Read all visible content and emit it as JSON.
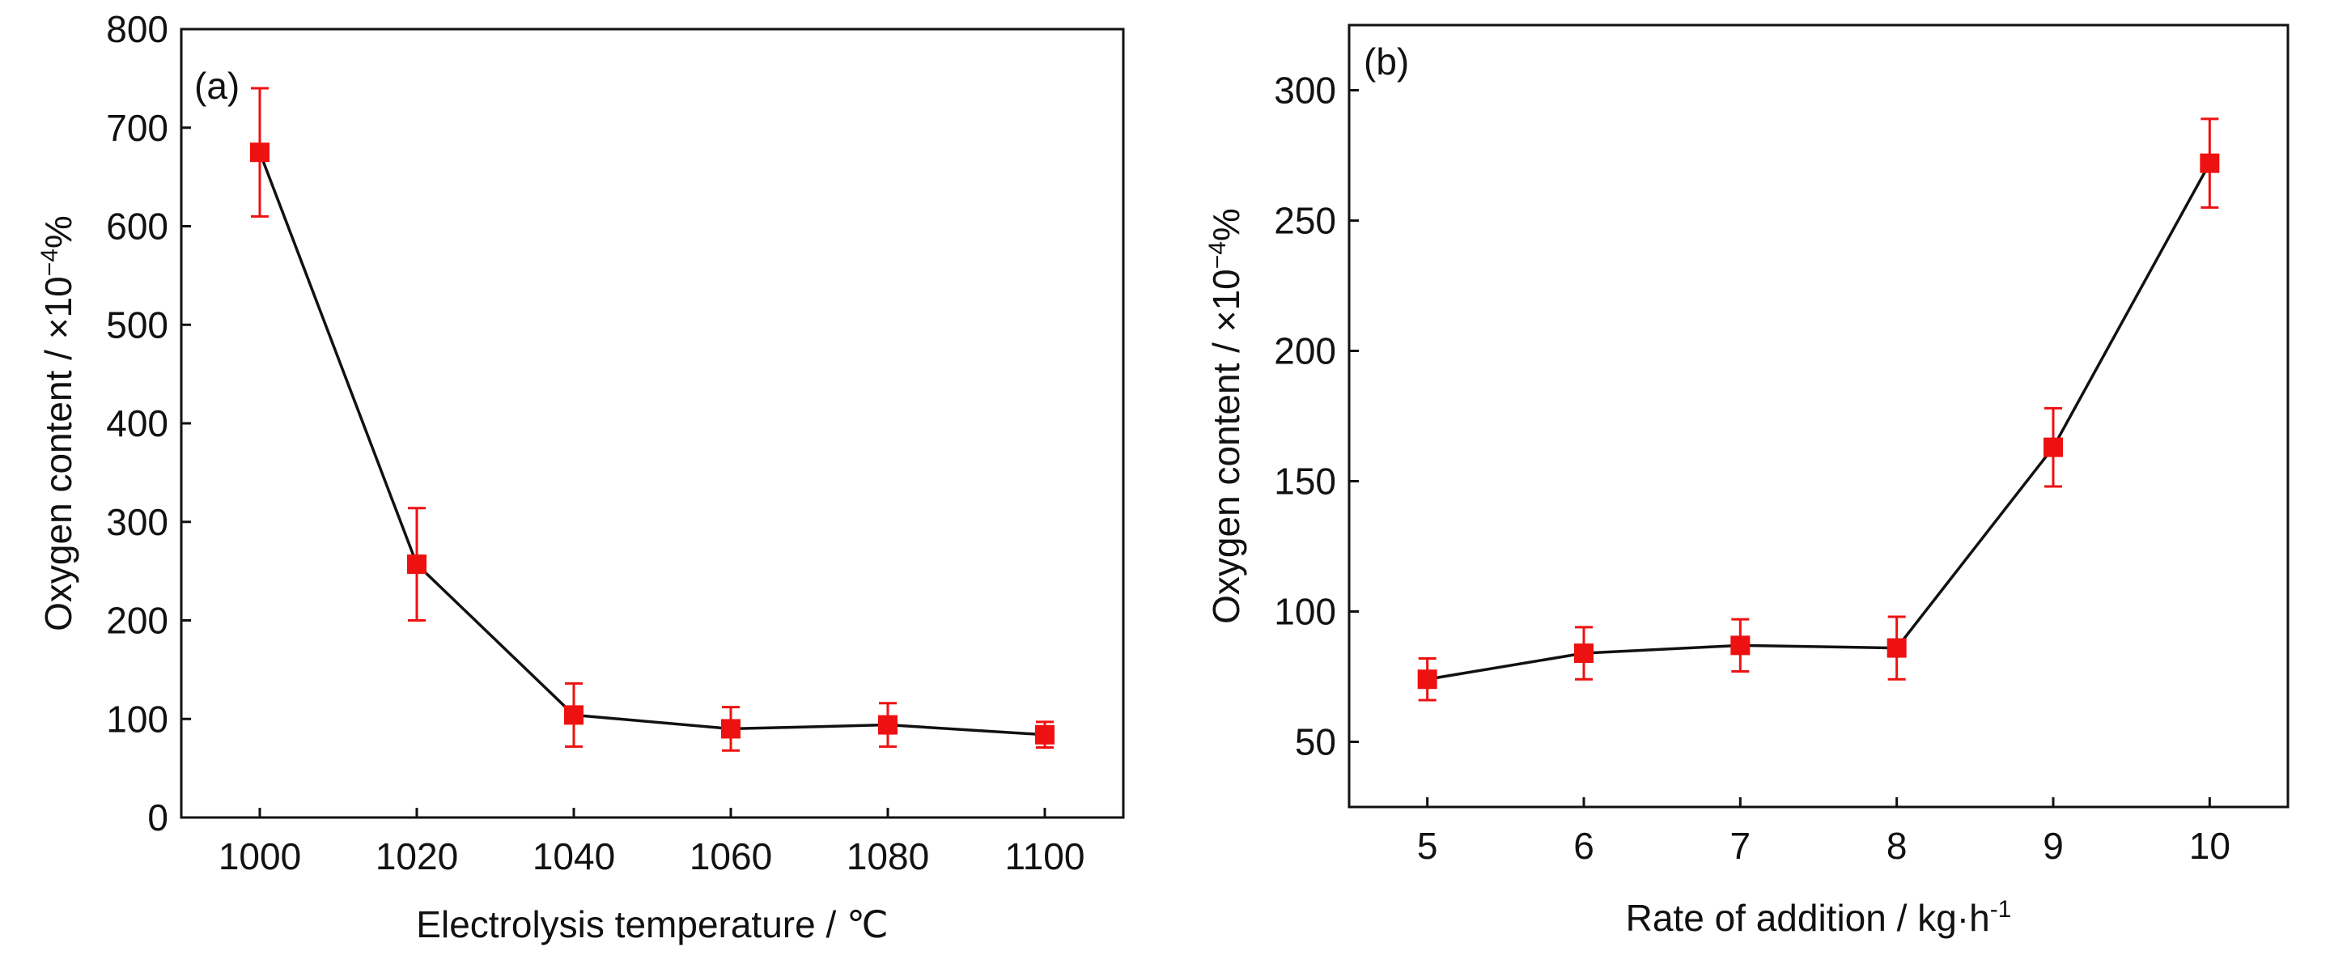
{
  "chart_data": [
    {
      "type": "line",
      "panel_label": "(a)",
      "title": "",
      "xlabel": "Electrolysis temperature / ℃",
      "ylabel_main": "Oxygen content / ×10",
      "ylabel_exp": "−4",
      "ylabel_unit": "%",
      "x": [
        1000,
        1020,
        1040,
        1060,
        1080,
        1100
      ],
      "y": [
        675,
        257,
        104,
        90,
        94,
        84
      ],
      "err": [
        65,
        57,
        32,
        22,
        22,
        13
      ],
      "xlim": [
        990,
        1110
      ],
      "ylim": [
        0,
        800
      ],
      "xticks": [
        1000,
        1020,
        1040,
        1060,
        1080,
        1100
      ],
      "yticks": [
        0,
        100,
        200,
        300,
        400,
        500,
        600,
        700,
        800
      ],
      "grid": false,
      "marker_color": "#ee1111",
      "line_color": "#111111"
    },
    {
      "type": "line",
      "panel_label": "(b)",
      "title": "",
      "xlabel_main": "Rate of addition / kg·h",
      "xlabel_exp": "-1",
      "ylabel_main": "Oxygen content / ×10",
      "ylabel_exp": "−4",
      "ylabel_unit": "%",
      "x": [
        5,
        6,
        7,
        8,
        9,
        10
      ],
      "y": [
        74,
        84,
        87,
        86,
        163,
        272
      ],
      "err": [
        8,
        10,
        10,
        12,
        15,
        17
      ],
      "xlim": [
        4.5,
        10.5
      ],
      "ylim": [
        25,
        325
      ],
      "xticks": [
        5,
        6,
        7,
        8,
        9,
        10
      ],
      "yticks": [
        50,
        100,
        150,
        200,
        250,
        300
      ],
      "grid": false,
      "marker_color": "#ee1111",
      "line_color": "#111111"
    }
  ]
}
